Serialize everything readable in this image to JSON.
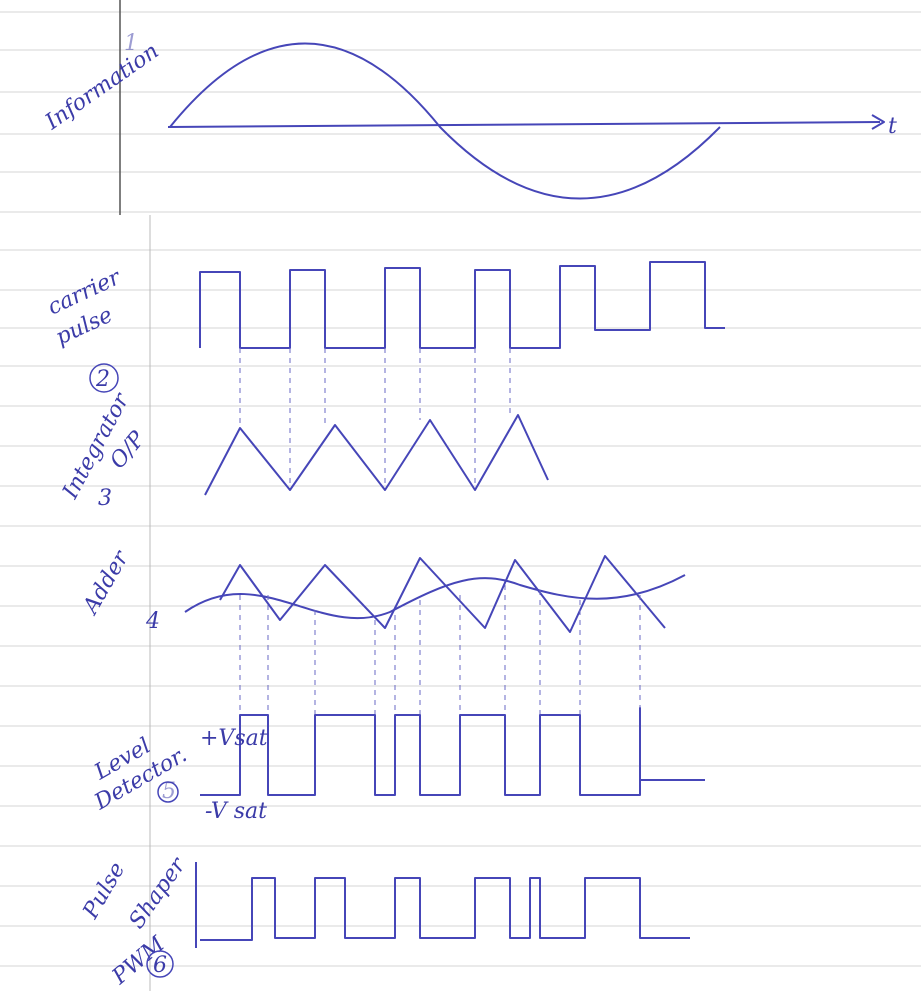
{
  "axis_label": "t",
  "panels": [
    {
      "label": "Information",
      "number": "1"
    },
    {
      "label": "carrier",
      "label2": "pulse",
      "number": "2"
    },
    {
      "label": "Integrator",
      "label2": "O/P",
      "number": "3"
    },
    {
      "label": "Adder",
      "number": "4"
    },
    {
      "label": "Level",
      "label2": "Detector.",
      "number": "5"
    },
    {
      "label": "Pulse",
      "label2": "Shaper",
      "label3": "PWM",
      "number": "6"
    }
  ],
  "level_detector": {
    "high": "+Vsat",
    "low": "-V sat"
  }
}
